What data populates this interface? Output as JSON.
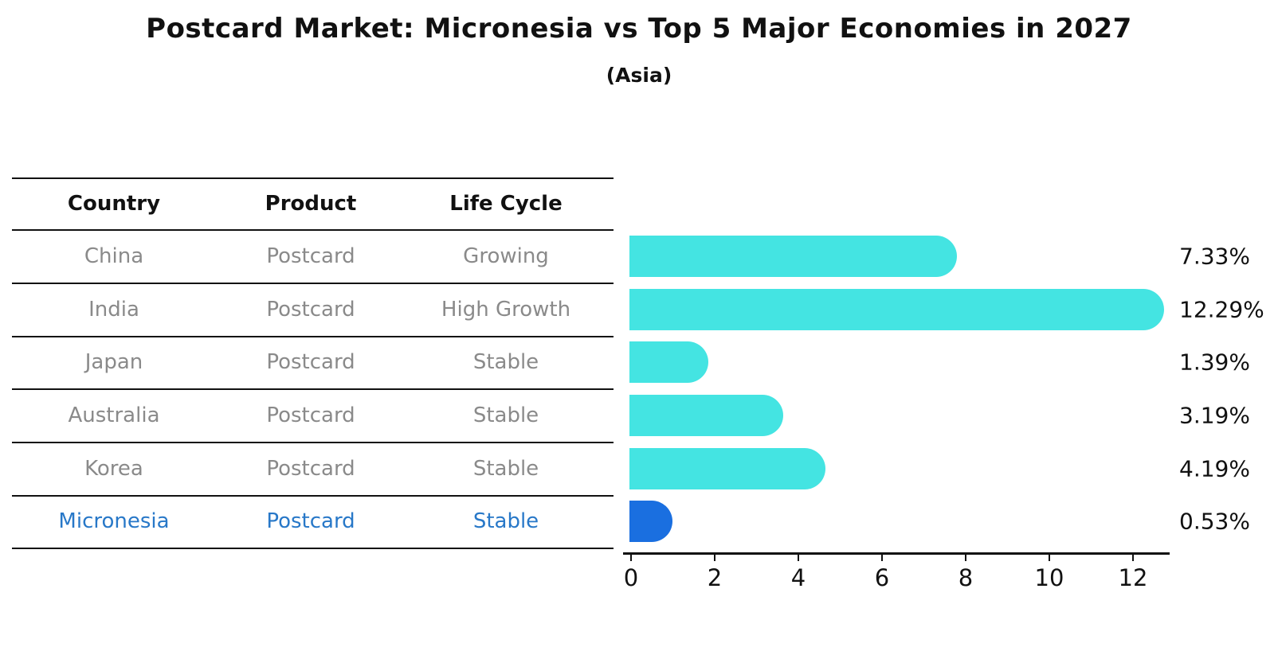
{
  "title": "Postcard Market: Micronesia vs Top 5 Major Economies in 2027",
  "subtitle": "(Asia)",
  "table": {
    "headers": [
      "Country",
      "Product",
      "Life Cycle"
    ],
    "rows": [
      {
        "country": "China",
        "product": "Postcard",
        "life_cycle": "Growing"
      },
      {
        "country": "India",
        "product": "Postcard",
        "life_cycle": "High Growth"
      },
      {
        "country": "Japan",
        "product": "Postcard",
        "life_cycle": "Stable"
      },
      {
        "country": "Australia",
        "product": "Postcard",
        "life_cycle": "Stable"
      },
      {
        "country": "Korea",
        "product": "Postcard",
        "life_cycle": "Stable"
      },
      {
        "country": "Micronesia",
        "product": "Postcard",
        "life_cycle": "Stable"
      }
    ]
  },
  "chart_data": {
    "type": "bar",
    "orientation": "horizontal",
    "title": "Postcard Market: Micronesia vs Top 5 Major Economies in 2027",
    "subtitle": "(Asia)",
    "categories": [
      "China",
      "India",
      "Japan",
      "Australia",
      "Korea",
      "Micronesia"
    ],
    "values": [
      7.33,
      12.29,
      1.39,
      3.19,
      4.19,
      0.53
    ],
    "value_labels": [
      "7.33%",
      "12.29%",
      "1.39%",
      "3.19%",
      "4.19%",
      "0.53%"
    ],
    "x_ticks": [
      "0",
      "2",
      "4",
      "6",
      "8",
      "10",
      "12"
    ],
    "xlim": [
      0,
      13
    ],
    "grid": false,
    "legend": false,
    "highlight_index": 5
  },
  "colors": {
    "bar": "#44E4E2",
    "highlight_bar": "#1A6FE0",
    "highlight_text": "#2878C8",
    "table_text": "#8A8A8A",
    "heading_text": "#111111"
  }
}
